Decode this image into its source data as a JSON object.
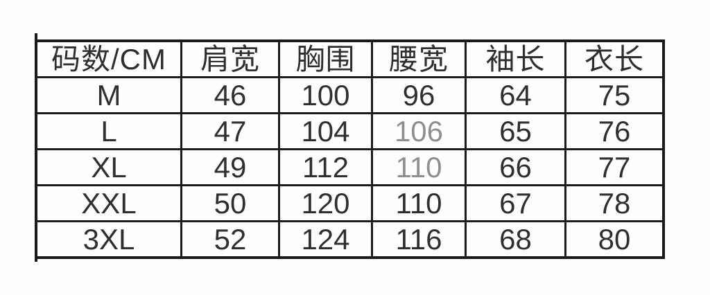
{
  "colors": {
    "background": "#fcfcfc",
    "table_background": "#fefefe",
    "border": "#1a1a1a",
    "text": "#2f2f2f",
    "muted_text": "#8f8f8f"
  },
  "table": {
    "headers": [
      "码数/CM",
      "肩宽",
      "胸围",
      "腰宽",
      "袖长",
      "衣长"
    ],
    "rows": [
      {
        "cells": [
          "M",
          "46",
          "100",
          "96",
          "64",
          "75"
        ]
      },
      {
        "cells": [
          "L",
          "47",
          "104",
          "106",
          "65",
          "76"
        ],
        "cell_classes": {
          "3": "muted"
        }
      },
      {
        "cells": [
          "XL",
          "49",
          "112",
          "110",
          "66",
          "77"
        ],
        "cell_classes": {
          "3": "muted"
        }
      },
      {
        "cells": [
          "XXL",
          "50",
          "120",
          "110",
          "67",
          "78"
        ]
      },
      {
        "cells": [
          "3XL",
          "52",
          "124",
          "116",
          "68",
          "80"
        ]
      }
    ]
  },
  "chart_data": {
    "type": "table",
    "title": "",
    "columns": [
      "码数/CM",
      "肩宽",
      "胸围",
      "腰宽",
      "袖长",
      "衣长"
    ],
    "rows": [
      [
        "M",
        46,
        100,
        96,
        64,
        75
      ],
      [
        "L",
        47,
        104,
        106,
        65,
        76
      ],
      [
        "XL",
        49,
        112,
        110,
        66,
        77
      ],
      [
        "XXL",
        50,
        120,
        110,
        67,
        78
      ],
      [
        "3XL",
        52,
        124,
        116,
        68,
        80
      ]
    ],
    "units": "CM",
    "layout_hints": {
      "grid": "on",
      "muted_cells": [
        {
          "row": "L",
          "column": "腰宽"
        },
        {
          "row": "XL",
          "column": "腰宽"
        }
      ]
    }
  }
}
